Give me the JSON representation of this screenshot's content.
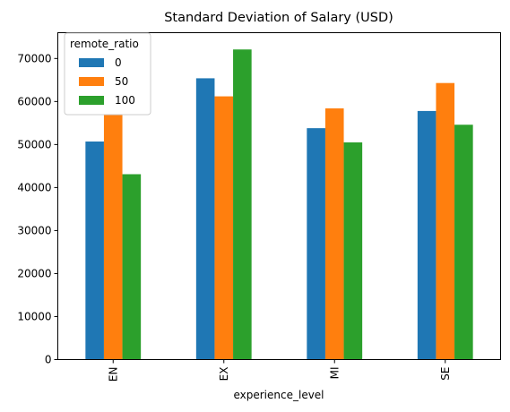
{
  "chart_data": {
    "type": "bar",
    "title": "Standard Deviation of Salary (USD)",
    "xlabel": "experience_level",
    "ylabel": "",
    "categories": [
      "EN",
      "EX",
      "MI",
      "SE"
    ],
    "ylim": [
      0,
      76000
    ],
    "yticks": [
      0,
      10000,
      20000,
      30000,
      40000,
      50000,
      60000,
      70000
    ],
    "legend": {
      "title": "remote_ratio",
      "placement": "top-left"
    },
    "grid": false,
    "series": [
      {
        "name": "0",
        "color": "#1f77b4",
        "values": [
          50700,
          65400,
          53800,
          57800
        ]
      },
      {
        "name": "50",
        "color": "#ff7f0e",
        "values": [
          57000,
          61200,
          58400,
          64300
        ]
      },
      {
        "name": "100",
        "color": "#2ca02c",
        "values": [
          43100,
          72100,
          50500,
          54600
        ]
      }
    ]
  }
}
